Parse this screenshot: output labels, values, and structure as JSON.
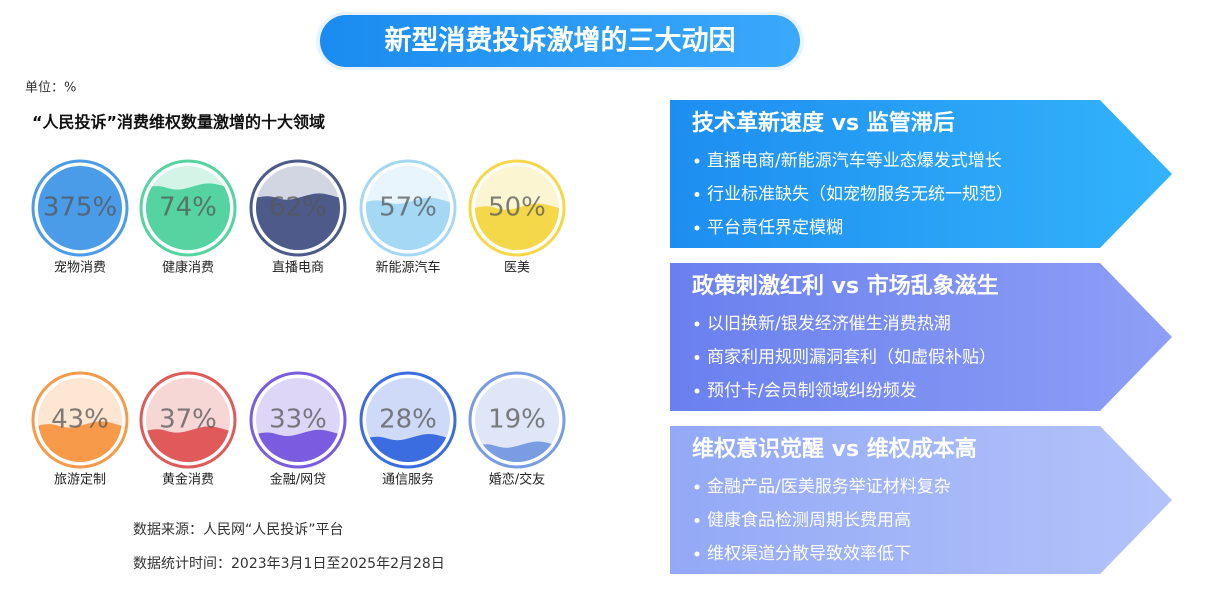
{
  "title": "新型消费投诉激增的三大动因",
  "chart_data": {
    "type": "liquid",
    "unit_label": "单位：%",
    "title": "“人民投诉”消费维权数量激增的十大领域",
    "categories": [
      "宠物消费",
      "健康消费",
      "直播电商",
      "新能源汽车",
      "医美",
      "旅游定制",
      "黄金消费",
      "金融/网贷",
      "通信服务",
      "婚恋/交友"
    ],
    "values": [
      375,
      74,
      62,
      57,
      50,
      43,
      37,
      33,
      28,
      19
    ],
    "value_labels": [
      "375%",
      "74%",
      "62%",
      "57%",
      "50%",
      "43%",
      "37%",
      "33%",
      "28%",
      "19%"
    ],
    "colors": [
      "#4a9be8",
      "#55d3a0",
      "#4d5a8a",
      "#a5d8f5",
      "#f5d84a",
      "#f79a4a",
      "#e05a5a",
      "#7a5ce0",
      "#3b6de0",
      "#7a9ce0"
    ]
  },
  "sources": [
    "数据来源：人民网“人民投诉”平台",
    "数据统计时间：2023年3月1日至2025年2月28日"
  ],
  "panels": [
    {
      "heading": "技术革新速度 vs 监管滞后",
      "bullets": [
        "直播电商/新能源汽车等业态爆发式增长",
        "行业标准缺失（如宠物服务无统一规范）",
        "平台责任界定模糊"
      ]
    },
    {
      "heading": "政策刺激红利 vs 市场乱象滋生",
      "bullets": [
        "以旧换新/银发经济催生消费热潮",
        "商家利用规则漏洞套利（如虚假补贴）",
        "预付卡/会员制领域纠纷频发"
      ]
    },
    {
      "heading": "维权意识觉醒 vs 维权成本高",
      "bullets": [
        "金融产品/医美服务举证材料复杂",
        "健康食品检测周期长费用高",
        "维权渠道分散导致效率低下"
      ]
    }
  ]
}
